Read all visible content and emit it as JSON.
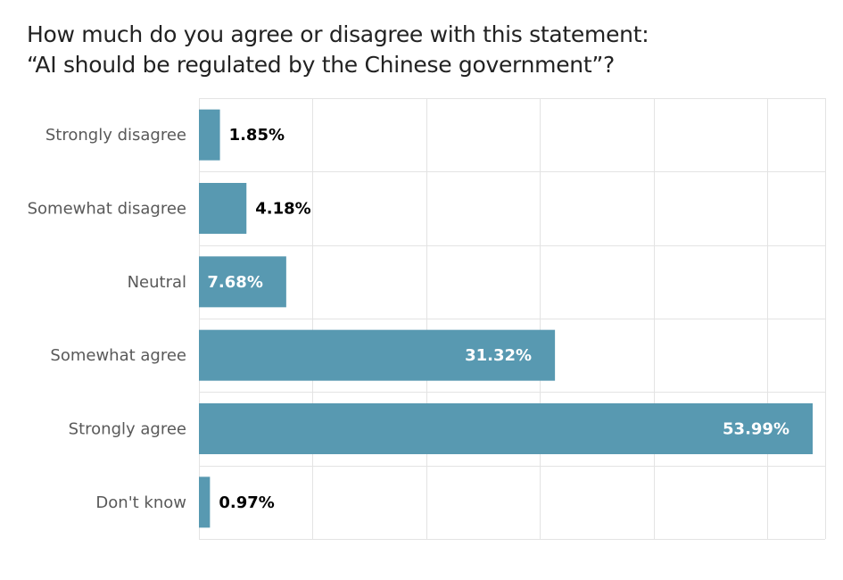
{
  "title": {
    "line1": "How much do you agree or disagree with this statement:",
    "line2": "“AI should be regulated by the Chinese government”?"
  },
  "colors": {
    "bar": "#5899b1",
    "grid": "#e3e3e3",
    "label_inside": "#ffffff",
    "label_outside": "#000000"
  },
  "chart_data": {
    "type": "bar",
    "orientation": "horizontal",
    "title": "How much do you agree or disagree with this statement: “AI should be regulated by the Chinese government”?",
    "xlabel": "",
    "ylabel": "",
    "categories": [
      "Strongly disagree",
      "Somewhat disagree",
      "Neutral",
      "Somewhat agree",
      "Strongly agree",
      "Don't know"
    ],
    "values": [
      1.85,
      4.18,
      7.68,
      31.32,
      53.99,
      0.97
    ],
    "value_labels": [
      "1.85%",
      "4.18%",
      "7.68%",
      "31.32%",
      "53.99%",
      "0.97%"
    ],
    "xlim": [
      0,
      55
    ],
    "grid": true,
    "legend": "none"
  }
}
